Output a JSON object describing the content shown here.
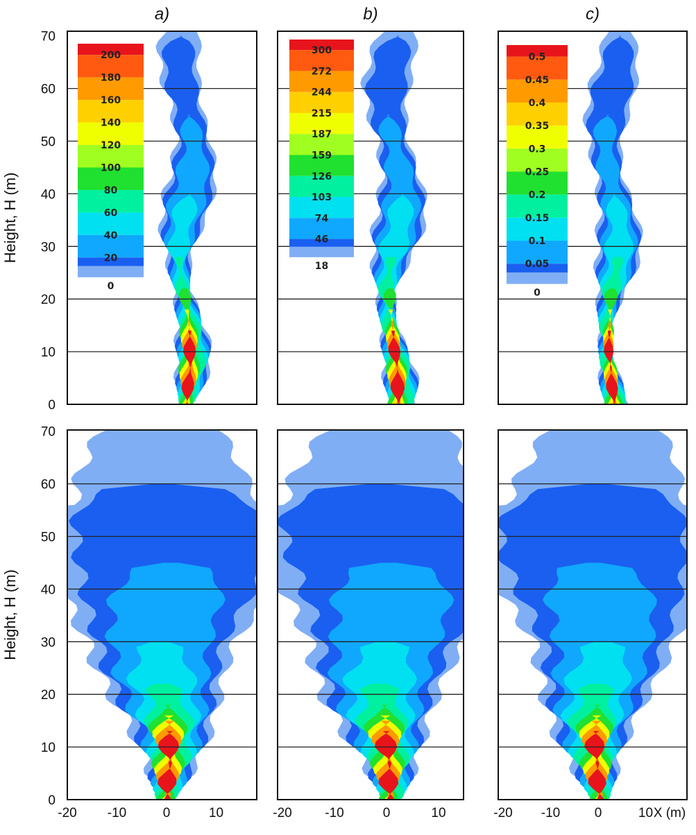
{
  "chart_data": {
    "type": "heatmap",
    "ylabel": "Height, H (m)",
    "xlabel": "X (m)",
    "ylim": [
      0,
      70
    ],
    "xlim": [
      -20,
      18
    ],
    "yticks": [
      "0",
      "10",
      "20",
      "30",
      "40",
      "50",
      "60",
      "70"
    ],
    "xticks": [
      "-20",
      "-10",
      "0",
      "10"
    ],
    "grid": "horizontal lines at 10 m intervals",
    "panels": [
      {
        "title": "a)",
        "legend_levels": [
          "200",
          "180",
          "160",
          "140",
          "120",
          "100",
          "80",
          "60",
          "40",
          "20",
          "0"
        ],
        "plume_center_top": 4,
        "plume_center_bottom": 0
      },
      {
        "title": "b)",
        "legend_levels": [
          "300",
          "272",
          "244",
          "215",
          "187",
          "159",
          "126",
          "103",
          "74",
          "46",
          "18"
        ],
        "plume_center_top": 1.5,
        "plume_center_bottom": 0
      },
      {
        "title": "c)",
        "legend_levels": [
          "0.5",
          "0.45",
          "0.4",
          "0.35",
          "0.3",
          "0.25",
          "0.2",
          "0.15",
          "0.1",
          "0.05",
          "0"
        ],
        "plume_center_top": 3,
        "plume_center_bottom": 0
      }
    ],
    "colors": [
      "#e8141c",
      "#ff5a10",
      "#ff9a00",
      "#ffd000",
      "#f0ff00",
      "#a0ff20",
      "#20e030",
      "#00f0a0",
      "#00e0f0",
      "#10a8ff",
      "#1a5ff0",
      "#80aef5",
      "#ffffff"
    ]
  }
}
